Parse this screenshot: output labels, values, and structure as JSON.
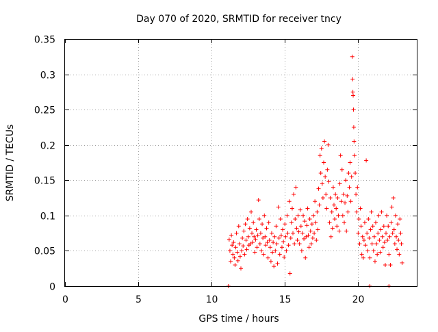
{
  "chart_data": {
    "type": "scatter",
    "title": "Day 070 of 2020, SRMTID for receiver tncy",
    "xlabel": "GPS time / hours",
    "ylabel": "SRMTID / TECUs",
    "xlim": [
      0,
      24
    ],
    "ylim": [
      0,
      0.35
    ],
    "x_ticks": [
      0,
      5,
      10,
      15,
      20
    ],
    "x_tick_labels": [
      "0",
      "5",
      "10",
      "15",
      "20"
    ],
    "y_ticks": [
      0,
      0.05,
      0.1,
      0.15,
      0.2,
      0.25,
      0.3,
      0.35
    ],
    "y_tick_labels": [
      "0",
      "0.05",
      "0.1",
      "0.15",
      "0.2",
      "0.25",
      "0.3",
      "0.35"
    ],
    "grid": true,
    "marker": "plus",
    "color": "#ff0000",
    "series": [
      {
        "name": "SRMTID",
        "points": [
          [
            11.15,
            0.0
          ],
          [
            20.8,
            0.0
          ],
          [
            22.1,
            0.0
          ],
          [
            11.2,
            0.066
          ],
          [
            11.25,
            0.05
          ],
          [
            11.3,
            0.035
          ],
          [
            11.35,
            0.072
          ],
          [
            11.4,
            0.058
          ],
          [
            11.45,
            0.045
          ],
          [
            11.5,
            0.062
          ],
          [
            11.55,
            0.04
          ],
          [
            11.6,
            0.03
          ],
          [
            11.65,
            0.055
          ],
          [
            11.7,
            0.075
          ],
          [
            11.75,
            0.048
          ],
          [
            11.8,
            0.036
          ],
          [
            11.85,
            0.085
          ],
          [
            11.9,
            0.06
          ],
          [
            11.95,
            0.042
          ],
          [
            12.0,
            0.025
          ],
          [
            12.05,
            0.05
          ],
          [
            12.1,
            0.068
          ],
          [
            12.15,
            0.057
          ],
          [
            12.2,
            0.078
          ],
          [
            12.25,
            0.045
          ],
          [
            12.3,
            0.088
          ],
          [
            12.35,
            0.065
          ],
          [
            12.4,
            0.052
          ],
          [
            12.45,
            0.095
          ],
          [
            12.5,
            0.07
          ],
          [
            12.55,
            0.058
          ],
          [
            12.6,
            0.082
          ],
          [
            12.65,
            0.06
          ],
          [
            12.7,
            0.105
          ],
          [
            12.75,
            0.075
          ],
          [
            12.8,
            0.062
          ],
          [
            12.85,
            0.09
          ],
          [
            12.9,
            0.07
          ],
          [
            12.95,
            0.048
          ],
          [
            13.0,
            0.066
          ],
          [
            13.05,
            0.08
          ],
          [
            13.1,
            0.055
          ],
          [
            13.15,
            0.072
          ],
          [
            13.2,
            0.122
          ],
          [
            13.25,
            0.095
          ],
          [
            13.3,
            0.06
          ],
          [
            13.35,
            0.075
          ],
          [
            13.4,
            0.05
          ],
          [
            13.45,
            0.088
          ],
          [
            13.5,
            0.068
          ],
          [
            13.55,
            0.045
          ],
          [
            13.6,
            0.1
          ],
          [
            13.65,
            0.07
          ],
          [
            13.7,
            0.058
          ],
          [
            13.75,
            0.082
          ],
          [
            13.8,
            0.062
          ],
          [
            13.85,
            0.04
          ],
          [
            13.9,
            0.09
          ],
          [
            13.95,
            0.065
          ],
          [
            14.0,
            0.055
          ],
          [
            14.05,
            0.035
          ],
          [
            14.1,
            0.075
          ],
          [
            14.15,
            0.048
          ],
          [
            14.2,
            0.062
          ],
          [
            14.25,
            0.028
          ],
          [
            14.3,
            0.07
          ],
          [
            14.35,
            0.05
          ],
          [
            14.4,
            0.085
          ],
          [
            14.45,
            0.06
          ],
          [
            14.5,
            0.032
          ],
          [
            14.55,
            0.112
          ],
          [
            14.6,
            0.068
          ],
          [
            14.65,
            0.045
          ],
          [
            14.7,
            0.095
          ],
          [
            14.75,
            0.072
          ],
          [
            14.8,
            0.055
          ],
          [
            14.85,
            0.08
          ],
          [
            14.9,
            0.063
          ],
          [
            14.95,
            0.041
          ],
          [
            15.0,
            0.088
          ],
          [
            15.05,
            0.07
          ],
          [
            15.1,
            0.05
          ],
          [
            15.15,
            0.1
          ],
          [
            15.2,
            0.075
          ],
          [
            15.25,
            0.058
          ],
          [
            15.3,
            0.12
          ],
          [
            15.35,
            0.018
          ],
          [
            15.4,
            0.068
          ],
          [
            15.45,
            0.09
          ],
          [
            15.5,
            0.11
          ],
          [
            15.55,
            0.075
          ],
          [
            15.6,
            0.13
          ],
          [
            15.65,
            0.06
          ],
          [
            15.7,
            0.095
          ],
          [
            15.75,
            0.14
          ],
          [
            15.8,
            0.082
          ],
          [
            15.85,
            0.065
          ],
          [
            15.9,
            0.1
          ],
          [
            15.95,
            0.077
          ],
          [
            16.0,
            0.06
          ],
          [
            16.05,
            0.108
          ],
          [
            16.1,
            0.085
          ],
          [
            16.15,
            0.05
          ],
          [
            16.2,
            0.075
          ],
          [
            16.25,
            0.1
          ],
          [
            16.3,
            0.067
          ],
          [
            16.35,
            0.092
          ],
          [
            16.4,
            0.04
          ],
          [
            16.45,
            0.07
          ],
          [
            16.5,
            0.086
          ],
          [
            16.55,
            0.11
          ],
          [
            16.6,
            0.072
          ],
          [
            16.65,
            0.055
          ],
          [
            16.7,
            0.095
          ],
          [
            16.75,
            0.078
          ],
          [
            16.8,
            0.06
          ],
          [
            16.85,
            0.088
          ],
          [
            16.9,
            0.068
          ],
          [
            16.95,
            0.1
          ],
          [
            17.0,
            0.075
          ],
          [
            17.05,
            0.12
          ],
          [
            17.1,
            0.09
          ],
          [
            17.15,
            0.065
          ],
          [
            17.2,
            0.105
          ],
          [
            17.25,
            0.08
          ],
          [
            17.3,
            0.138
          ],
          [
            17.35,
            0.115
          ],
          [
            17.4,
            0.185
          ],
          [
            17.45,
            0.16
          ],
          [
            17.5,
            0.195
          ],
          [
            17.55,
            0.145
          ],
          [
            17.6,
            0.125
          ],
          [
            17.65,
            0.175
          ],
          [
            17.7,
            0.205
          ],
          [
            17.75,
            0.155
          ],
          [
            17.8,
            0.13
          ],
          [
            17.85,
            0.11
          ],
          [
            17.9,
            0.165
          ],
          [
            17.95,
            0.2
          ],
          [
            18.0,
            0.148
          ],
          [
            18.05,
            0.09
          ],
          [
            18.1,
            0.125
          ],
          [
            18.15,
            0.07
          ],
          [
            18.2,
            0.105
          ],
          [
            18.25,
            0.082
          ],
          [
            18.3,
            0.14
          ],
          [
            18.35,
            0.115
          ],
          [
            18.4,
            0.095
          ],
          [
            18.45,
            0.13
          ],
          [
            18.5,
            0.11
          ],
          [
            18.55,
            0.085
          ],
          [
            18.6,
            0.125
          ],
          [
            18.65,
            0.1
          ],
          [
            18.7,
            0.078
          ],
          [
            18.75,
            0.145
          ],
          [
            18.8,
            0.185
          ],
          [
            18.85,
            0.12
          ],
          [
            18.9,
            0.165
          ],
          [
            18.95,
            0.1
          ],
          [
            19.0,
            0.13
          ],
          [
            19.05,
            0.09
          ],
          [
            19.1,
            0.118
          ],
          [
            19.15,
            0.15
          ],
          [
            19.2,
            0.078
          ],
          [
            19.25,
            0.128
          ],
          [
            19.3,
            0.105
          ],
          [
            19.35,
            0.16
          ],
          [
            19.4,
            0.14
          ],
          [
            19.45,
            0.175
          ],
          [
            19.5,
            0.12
          ],
          [
            19.55,
            0.155
          ],
          [
            19.6,
            0.325
          ],
          [
            19.62,
            0.293
          ],
          [
            19.64,
            0.275
          ],
          [
            19.66,
            0.27
          ],
          [
            19.68,
            0.25
          ],
          [
            19.7,
            0.225
          ],
          [
            19.72,
            0.205
          ],
          [
            19.75,
            0.185
          ],
          [
            19.8,
            0.16
          ],
          [
            19.85,
            0.13
          ],
          [
            19.9,
            0.105
          ],
          [
            19.95,
            0.14
          ],
          [
            20.0,
            0.075
          ],
          [
            20.05,
            0.095
          ],
          [
            20.1,
            0.06
          ],
          [
            20.15,
            0.11
          ],
          [
            20.2,
            0.085
          ],
          [
            20.25,
            0.045
          ],
          [
            20.3,
            0.07
          ],
          [
            20.35,
            0.04
          ],
          [
            20.4,
            0.065
          ],
          [
            20.45,
            0.09
          ],
          [
            20.5,
            0.058
          ],
          [
            20.55,
            0.178
          ],
          [
            20.6,
            0.075
          ],
          [
            20.65,
            0.05
          ],
          [
            20.7,
            0.095
          ],
          [
            20.75,
            0.068
          ],
          [
            20.8,
            0.04
          ],
          [
            20.85,
            0.08
          ],
          [
            20.9,
            0.105
          ],
          [
            20.95,
            0.06
          ],
          [
            21.0,
            0.085
          ],
          [
            21.05,
            0.05
          ],
          [
            21.1,
            0.07
          ],
          [
            21.15,
            0.035
          ],
          [
            21.2,
            0.09
          ],
          [
            21.25,
            0.06
          ],
          [
            21.3,
            0.045
          ],
          [
            21.35,
            0.075
          ],
          [
            21.4,
            0.1
          ],
          [
            21.45,
            0.065
          ],
          [
            21.5,
            0.048
          ],
          [
            21.55,
            0.08
          ],
          [
            21.6,
            0.105
          ],
          [
            21.65,
            0.07
          ],
          [
            21.7,
            0.055
          ],
          [
            21.75,
            0.085
          ],
          [
            21.8,
            0.062
          ],
          [
            21.85,
            0.03
          ],
          [
            21.9,
            0.075
          ],
          [
            21.95,
            0.1
          ],
          [
            22.0,
            0.065
          ],
          [
            22.05,
            0.085
          ],
          [
            22.1,
            0.045
          ],
          [
            22.15,
            0.07
          ],
          [
            22.2,
            0.03
          ],
          [
            22.25,
            0.09
          ],
          [
            22.3,
            0.112
          ],
          [
            22.35,
            0.075
          ],
          [
            22.4,
            0.125
          ],
          [
            22.45,
            0.08
          ],
          [
            22.5,
            0.06
          ],
          [
            22.55,
            0.1
          ],
          [
            22.6,
            0.07
          ],
          [
            22.65,
            0.052
          ],
          [
            22.7,
            0.088
          ],
          [
            22.75,
            0.065
          ],
          [
            22.8,
            0.045
          ],
          [
            22.85,
            0.095
          ],
          [
            22.9,
            0.075
          ],
          [
            22.95,
            0.06
          ],
          [
            23.0,
            0.033
          ]
        ]
      }
    ]
  }
}
